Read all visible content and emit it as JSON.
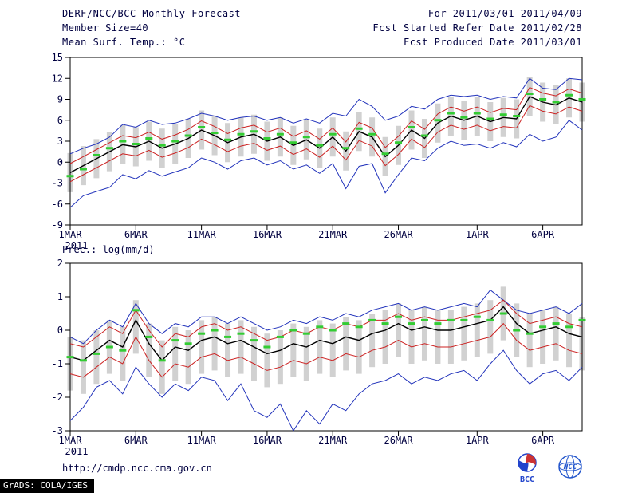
{
  "header": {
    "title": "DERF/NCC/BCC Monthly Forecast",
    "member_size": "Member Size=40",
    "top_chart_label": "Mean Surf. Temp.: °C",
    "for_range": "For 2011/03/01-2011/04/09",
    "fcst_started": "Fcst Started Refer Date 2011/02/28",
    "fcst_produced": "Fcst Produced Date 2011/03/01"
  },
  "labels": {
    "prec_label": "Prec.: log(mm/d)"
  },
  "footer": {
    "url": "http://cmdp.ncc.cma.gov.cn",
    "grads_credit": "GrADS: COLA/IGES",
    "logos": [
      {
        "name": "bcc-logo",
        "label": "BCC"
      },
      {
        "name": "ncc-logo",
        "label": "NCC"
      }
    ]
  },
  "colors": {
    "text": "#000040",
    "envelope_blue": "#2233bb",
    "spread_red": "#cc2222",
    "mean_black": "#000000",
    "marker_green": "#33cc33",
    "bar_gray": "#c9c9c9"
  },
  "chart_data": [
    {
      "type": "line",
      "title": "Mean Surf. Temp.: °C",
      "ylabel": "°C",
      "x_days": 40,
      "x_tick_days": [
        1,
        6,
        11,
        16,
        21,
        26,
        32,
        37
      ],
      "x_tick_labels": [
        "1MAR",
        "6MAR",
        "11MAR",
        "16MAR",
        "21MAR",
        "26MAR",
        "1APR",
        "6APR"
      ],
      "x_sub_label": "2011",
      "ylim": [
        -9,
        15
      ],
      "yticks": [
        -9,
        -6,
        -3,
        0,
        3,
        6,
        9,
        12,
        15
      ],
      "grid": false,
      "series": [
        {
          "name": "ensemble-max",
          "color": "#2233bb",
          "width": 1,
          "values": [
            1.2,
            2.0,
            2.6,
            3.6,
            5.4,
            5.0,
            6.0,
            5.4,
            5.6,
            6.2,
            7.0,
            6.6,
            6.0,
            6.4,
            6.6,
            6.0,
            6.4,
            5.6,
            6.2,
            5.6,
            7.0,
            6.6,
            9.0,
            8.0,
            6.0,
            6.6,
            8.0,
            7.6,
            9.0,
            9.6,
            9.4,
            9.6,
            9.0,
            9.4,
            9.2,
            12.0,
            10.6,
            10.4,
            12.0,
            11.8
          ]
        },
        {
          "name": "upper-spread",
          "color": "#cc2222",
          "width": 1,
          "values": [
            -0.2,
            0.8,
            1.8,
            2.8,
            3.8,
            3.5,
            4.3,
            3.3,
            3.9,
            4.7,
            5.9,
            5.1,
            4.1,
            4.9,
            5.3,
            4.3,
            4.9,
            3.7,
            4.5,
            3.3,
            4.9,
            2.9,
            5.7,
            4.9,
            2.1,
            3.7,
            5.9,
            4.7,
            6.9,
            7.9,
            7.3,
            7.9,
            7.1,
            7.7,
            7.5,
            10.7,
            9.9,
            9.5,
            10.5,
            9.9
          ]
        },
        {
          "name": "ensemble-mean",
          "color": "#000000",
          "width": 1.4,
          "values": [
            -1.5,
            -0.5,
            0.5,
            1.5,
            2.5,
            2.2,
            3.0,
            2.0,
            2.6,
            3.4,
            4.6,
            3.8,
            2.8,
            3.6,
            4.0,
            3.0,
            3.6,
            2.4,
            3.2,
            2.0,
            3.6,
            1.6,
            4.4,
            3.6,
            0.8,
            2.4,
            4.6,
            3.4,
            5.6,
            6.6,
            6.0,
            6.6,
            5.8,
            6.4,
            6.2,
            9.4,
            8.6,
            8.2,
            9.2,
            8.6
          ]
        },
        {
          "name": "lower-spread",
          "color": "#cc2222",
          "width": 1,
          "values": [
            -2.8,
            -1.8,
            -0.8,
            0.2,
            1.2,
            0.9,
            1.7,
            0.7,
            1.3,
            2.1,
            3.3,
            2.5,
            1.5,
            2.3,
            2.7,
            1.7,
            2.3,
            1.1,
            1.9,
            0.7,
            2.3,
            0.3,
            3.1,
            2.3,
            -0.5,
            1.1,
            3.3,
            2.1,
            4.3,
            5.3,
            4.7,
            5.3,
            4.5,
            5.1,
            4.9,
            8.1,
            7.3,
            6.9,
            7.9,
            7.3
          ]
        },
        {
          "name": "ensemble-min",
          "color": "#2233bb",
          "width": 1,
          "values": [
            -6.5,
            -4.8,
            -4.2,
            -3.6,
            -1.8,
            -2.4,
            -1.2,
            -2.0,
            -1.4,
            -0.8,
            0.6,
            0.0,
            -1.0,
            0.2,
            0.6,
            -0.4,
            0.2,
            -1.0,
            -0.4,
            -1.6,
            -0.2,
            -3.8,
            -0.6,
            -0.2,
            -4.4,
            -1.8,
            0.6,
            0.2,
            2.0,
            3.0,
            2.4,
            2.6,
            2.0,
            2.8,
            2.2,
            4.0,
            3.0,
            3.6,
            6.0,
            4.6
          ]
        }
      ],
      "markers": {
        "name": "green-dash",
        "color": "#33cc33",
        "values": [
          -2.0,
          -1.0,
          1.0,
          2.0,
          3.0,
          2.6,
          3.4,
          2.4,
          3.0,
          3.8,
          5.0,
          4.2,
          3.2,
          4.0,
          4.4,
          3.4,
          4.0,
          2.8,
          3.6,
          2.4,
          4.0,
          2.0,
          4.8,
          4.0,
          1.2,
          2.8,
          5.0,
          3.8,
          6.0,
          7.0,
          6.4,
          7.0,
          6.2,
          6.8,
          6.6,
          9.8,
          9.0,
          8.6,
          9.6,
          9.0
        ]
      },
      "bars": {
        "name": "ensemble-spread-bar",
        "color": "#c9c9c9",
        "low": [
          -4.3,
          -3.3,
          -2.3,
          -1.3,
          -0.3,
          -0.6,
          0.2,
          -0.8,
          -0.2,
          0.6,
          1.8,
          1.0,
          0.0,
          0.8,
          1.2,
          0.2,
          0.8,
          -0.4,
          0.4,
          -0.8,
          0.8,
          -1.2,
          1.6,
          0.8,
          -2.0,
          -0.4,
          1.8,
          0.6,
          2.8,
          3.8,
          3.2,
          3.8,
          3.0,
          3.6,
          3.4,
          6.6,
          5.8,
          5.4,
          6.4,
          5.8
        ],
        "high": [
          1.3,
          2.3,
          3.3,
          4.3,
          5.3,
          5.0,
          5.8,
          4.8,
          5.4,
          6.2,
          7.4,
          6.6,
          5.6,
          6.4,
          6.8,
          5.8,
          6.4,
          5.2,
          6.0,
          4.8,
          6.4,
          4.4,
          7.2,
          6.4,
          3.6,
          5.2,
          7.4,
          6.2,
          8.4,
          9.4,
          8.8,
          9.4,
          8.6,
          9.2,
          9.0,
          12.2,
          11.4,
          11.0,
          12.0,
          11.4
        ]
      }
    },
    {
      "type": "line",
      "title": "Prec.: log(mm/d)",
      "ylabel": "log(mm/d)",
      "x_days": 40,
      "x_tick_days": [
        1,
        6,
        11,
        16,
        21,
        26,
        32,
        37
      ],
      "x_tick_labels": [
        "1MAR",
        "6MAR",
        "11MAR",
        "16MAR",
        "21MAR",
        "26MAR",
        "1APR",
        "6APR"
      ],
      "x_sub_label": "2011",
      "ylim": [
        -3,
        2
      ],
      "yticks": [
        -3,
        -2,
        -1,
        0,
        1,
        2
      ],
      "grid": false,
      "series": [
        {
          "name": "ensemble-max",
          "color": "#2233bb",
          "width": 1,
          "values": [
            -0.2,
            -0.4,
            0.0,
            0.3,
            0.1,
            0.8,
            0.2,
            -0.1,
            0.2,
            0.1,
            0.4,
            0.4,
            0.2,
            0.4,
            0.2,
            0.0,
            0.1,
            0.3,
            0.2,
            0.4,
            0.3,
            0.5,
            0.4,
            0.6,
            0.7,
            0.8,
            0.6,
            0.7,
            0.6,
            0.7,
            0.8,
            0.7,
            1.2,
            0.9,
            0.6,
            0.5,
            0.6,
            0.7,
            0.5,
            0.8
          ]
        },
        {
          "name": "upper-spread",
          "color": "#cc2222",
          "width": 1,
          "values": [
            -0.4,
            -0.5,
            -0.2,
            0.1,
            -0.1,
            0.6,
            0.0,
            -0.5,
            -0.1,
            -0.2,
            0.1,
            0.2,
            0.0,
            0.1,
            -0.1,
            -0.3,
            -0.2,
            0.0,
            -0.1,
            0.1,
            0.0,
            0.2,
            0.1,
            0.3,
            0.3,
            0.5,
            0.3,
            0.4,
            0.3,
            0.3,
            0.4,
            0.5,
            0.6,
            0.9,
            0.5,
            0.2,
            0.3,
            0.4,
            0.2,
            0.1
          ]
        },
        {
          "name": "ensemble-mean",
          "color": "#000000",
          "width": 1.4,
          "values": [
            -0.8,
            -0.9,
            -0.6,
            -0.3,
            -0.5,
            0.3,
            -0.4,
            -0.9,
            -0.5,
            -0.6,
            -0.3,
            -0.2,
            -0.4,
            -0.3,
            -0.5,
            -0.7,
            -0.6,
            -0.4,
            -0.5,
            -0.3,
            -0.4,
            -0.2,
            -0.3,
            -0.1,
            0.0,
            0.2,
            0.0,
            0.1,
            0.0,
            0.0,
            0.1,
            0.2,
            0.3,
            0.7,
            0.2,
            -0.1,
            0.0,
            0.1,
            -0.1,
            -0.2
          ]
        },
        {
          "name": "lower-spread",
          "color": "#cc2222",
          "width": 1,
          "values": [
            -1.3,
            -1.4,
            -1.1,
            -0.8,
            -1.0,
            -0.2,
            -0.9,
            -1.4,
            -1.0,
            -1.1,
            -0.8,
            -0.7,
            -0.9,
            -0.8,
            -1.0,
            -1.2,
            -1.1,
            -0.9,
            -1.0,
            -0.8,
            -0.9,
            -0.7,
            -0.8,
            -0.6,
            -0.5,
            -0.3,
            -0.5,
            -0.4,
            -0.5,
            -0.5,
            -0.4,
            -0.3,
            -0.2,
            0.2,
            -0.3,
            -0.6,
            -0.5,
            -0.4,
            -0.6,
            -0.7
          ]
        },
        {
          "name": "ensemble-min",
          "color": "#2233bb",
          "width": 1,
          "values": [
            -2.7,
            -2.3,
            -1.7,
            -1.5,
            -1.9,
            -1.1,
            -1.6,
            -2.0,
            -1.6,
            -1.8,
            -1.4,
            -1.5,
            -2.1,
            -1.6,
            -2.4,
            -2.6,
            -2.2,
            -3.0,
            -2.4,
            -2.8,
            -2.2,
            -2.4,
            -1.9,
            -1.6,
            -1.5,
            -1.3,
            -1.6,
            -1.4,
            -1.5,
            -1.3,
            -1.2,
            -1.5,
            -1.0,
            -0.6,
            -1.2,
            -1.6,
            -1.3,
            -1.2,
            -1.5,
            -1.1
          ]
        }
      ],
      "markers": {
        "name": "green-dash",
        "color": "#33cc33",
        "values": [
          -0.8,
          -0.9,
          -0.7,
          -0.5,
          -0.6,
          0.6,
          -0.2,
          -0.9,
          -0.3,
          -0.4,
          -0.1,
          0.0,
          -0.2,
          -0.1,
          -0.3,
          -0.5,
          -0.2,
          0.0,
          -0.1,
          0.1,
          0.0,
          0.2,
          0.1,
          0.3,
          0.2,
          0.4,
          0.2,
          0.3,
          0.2,
          0.3,
          0.3,
          0.4,
          0.3,
          0.5,
          0.0,
          -0.1,
          0.1,
          0.2,
          0.1,
          0.3
        ]
      },
      "bars": {
        "name": "ensemble-spread-bar",
        "color": "#c9c9c9",
        "low": [
          -1.8,
          -1.9,
          -1.6,
          -1.3,
          -1.5,
          -0.7,
          -1.4,
          -1.9,
          -1.5,
          -1.6,
          -1.3,
          -1.2,
          -1.4,
          -1.3,
          -1.5,
          -1.7,
          -1.6,
          -1.4,
          -1.5,
          -1.3,
          -1.4,
          -1.2,
          -1.3,
          -1.1,
          -1.0,
          -0.8,
          -1.0,
          -0.9,
          -1.0,
          -1.0,
          -0.9,
          -0.8,
          -0.7,
          -0.3,
          -0.8,
          -1.1,
          -1.0,
          -0.9,
          -1.1,
          -1.2
        ],
        "high": [
          -0.2,
          -0.3,
          0.0,
          0.3,
          0.1,
          0.9,
          0.2,
          -0.3,
          0.1,
          0.0,
          0.3,
          0.4,
          0.2,
          0.3,
          0.1,
          -0.1,
          0.0,
          0.2,
          0.1,
          0.3,
          0.2,
          0.4,
          0.3,
          0.5,
          0.6,
          0.8,
          0.6,
          0.7,
          0.6,
          0.6,
          0.7,
          0.8,
          0.9,
          1.3,
          0.8,
          0.5,
          0.6,
          0.7,
          0.5,
          0.4
        ]
      }
    }
  ]
}
